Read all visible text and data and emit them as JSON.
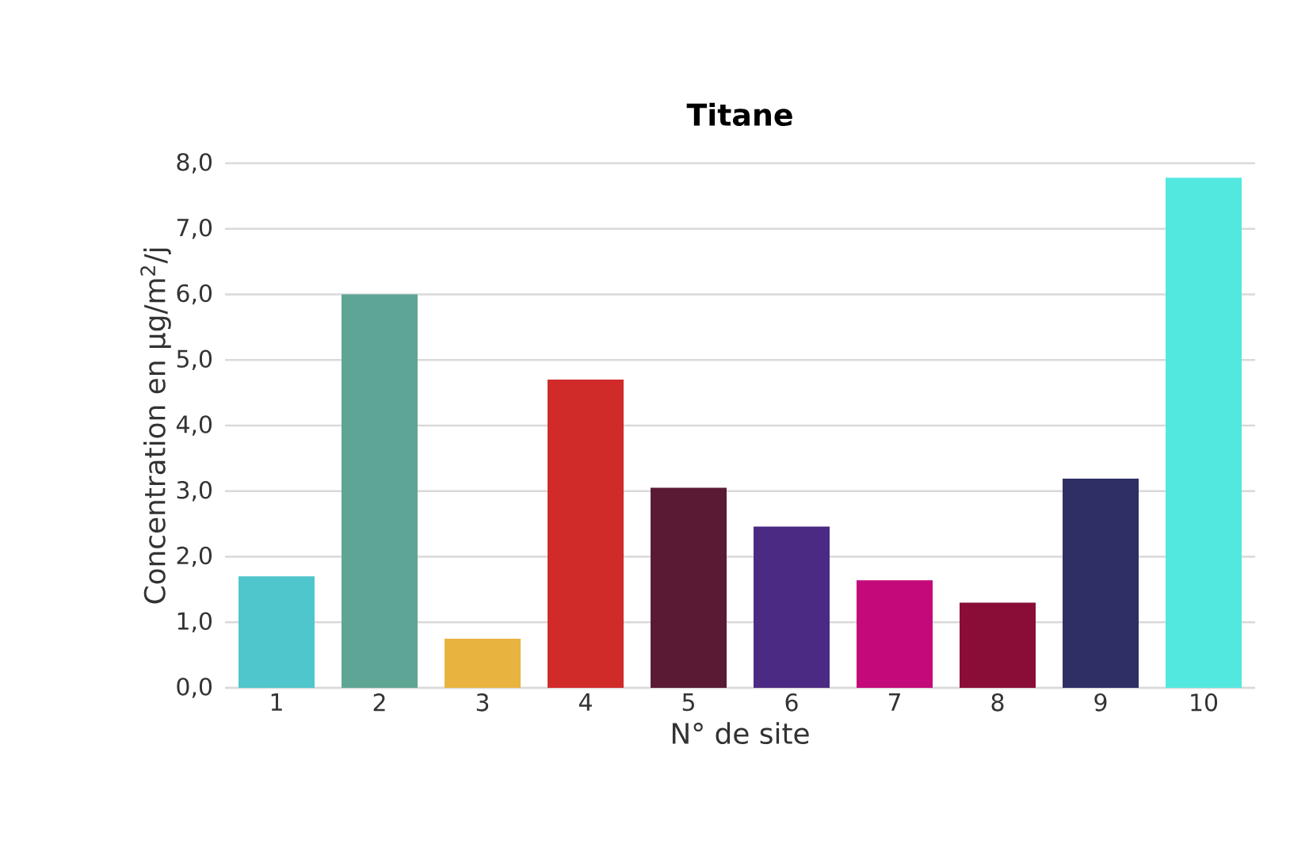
{
  "chart_data": {
    "type": "bar",
    "title": "Titane",
    "xlabel": "N° de site",
    "ylabel": "Concentration en µg/m$^{2}$/j",
    "categories": [
      "1",
      "2",
      "3",
      "4",
      "5",
      "6",
      "7",
      "8",
      "9",
      "10"
    ],
    "values": [
      1.7,
      6.0,
      0.75,
      4.7,
      3.05,
      2.46,
      1.64,
      1.3,
      3.19,
      7.78
    ],
    "colors": [
      "#4fc6cb",
      "#5fa595",
      "#e9b33f",
      "#d02a29",
      "#5a1a33",
      "#4a2a82",
      "#c4097a",
      "#8a0d37",
      "#2f2f66",
      "#53e8df"
    ],
    "ylim": [
      0,
      8
    ],
    "yticks": [
      {
        "value": 0,
        "label": "0,0"
      },
      {
        "value": 1,
        "label": "1,0"
      },
      {
        "value": 2,
        "label": "2,0"
      },
      {
        "value": 3,
        "label": "3,0"
      },
      {
        "value": 4,
        "label": "4,0"
      },
      {
        "value": 5,
        "label": "5,0"
      },
      {
        "value": 6,
        "label": "6,0"
      },
      {
        "value": 7,
        "label": "7,0"
      },
      {
        "value": 8,
        "label": "8,0"
      }
    ],
    "grid": "y"
  }
}
